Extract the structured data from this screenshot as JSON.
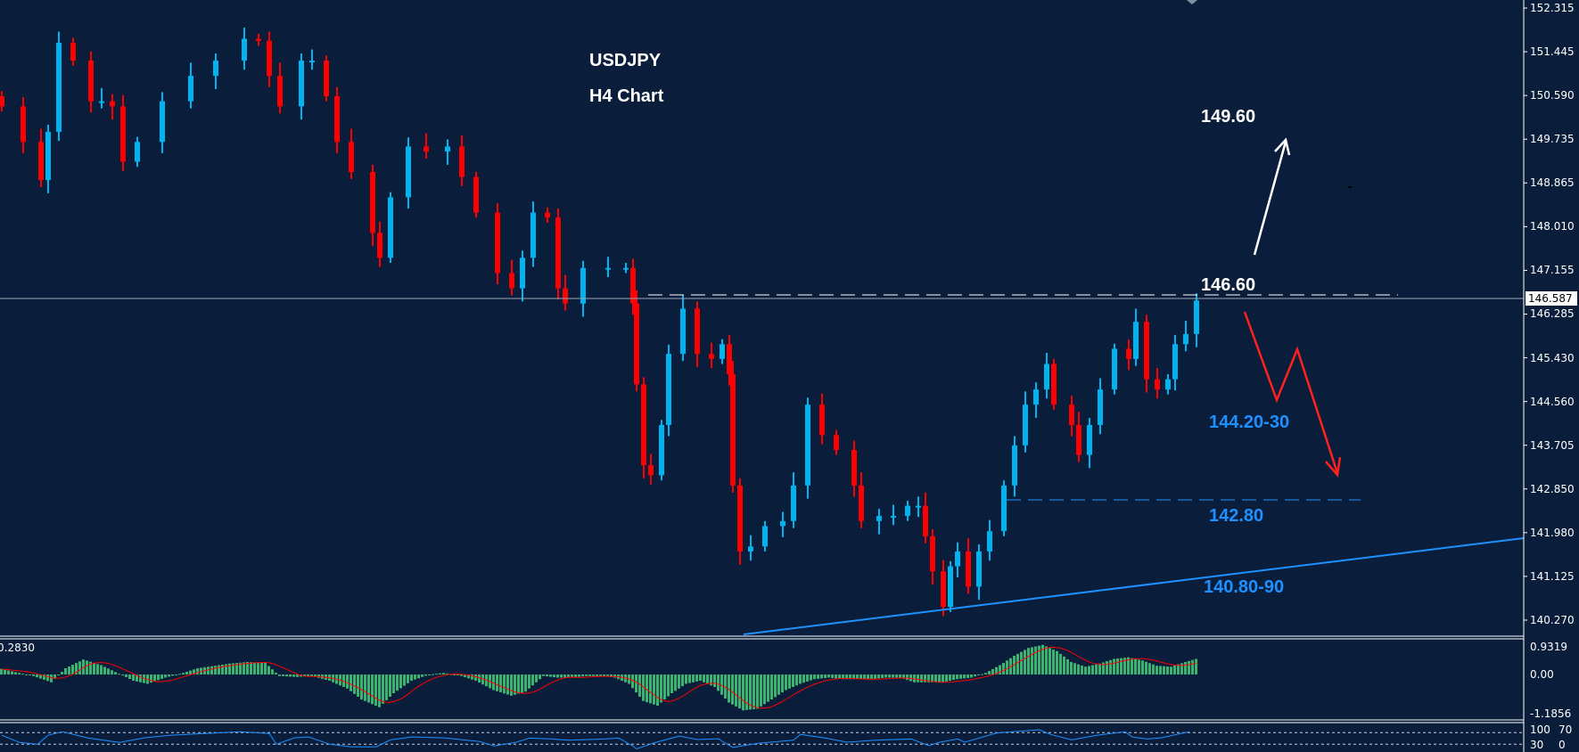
{
  "colors": {
    "background": "#0a1e3b",
    "bull": "#00b4f0",
    "bear": "#ff0000",
    "macd_hist": "#3cb371",
    "macd_signal": "#ff0000",
    "rsi": "#1e90ff",
    "annotation_blue": "#1e90ff",
    "annotation_white": "#ffffff",
    "annotation_red": "#ff2020"
  },
  "header": {
    "symbol": "USDJPY",
    "timeframe": "H4 Chart"
  },
  "current_price": "146.587",
  "annotations": {
    "target_up": "149.60",
    "resistance": "146.60",
    "support_1": "144.20-30",
    "support_2": "142.80",
    "trendline_support": "140.80-90"
  },
  "chart_data": {
    "type": "candlestick",
    "title": "USDJPY",
    "subtitle": "H4 Chart",
    "grid": false,
    "ylim": [
      140.0,
      152.4
    ],
    "y_ticks": [
      "152.315",
      "151.445",
      "150.590",
      "149.735",
      "148.865",
      "148.010",
      "147.155",
      "146.285",
      "145.430",
      "144.560",
      "143.705",
      "142.850",
      "141.980",
      "141.125",
      "140.270"
    ],
    "candles": {
      "bar": [
        0,
        6,
        11,
        13,
        16,
        20,
        25,
        28,
        31,
        34,
        38,
        45,
        53,
        60,
        68,
        72,
        75,
        78,
        84,
        87,
        91,
        94,
        98,
        104,
        106,
        109,
        114,
        119,
        125,
        129,
        133,
        139,
        143,
        146,
        149,
        153,
        156,
        158,
        163,
        170,
        175,
        177,
        178,
        180,
        182,
        185,
        187,
        191,
        195,
        199,
        202,
        204,
        205,
        207,
        210,
        214,
        219,
        222,
        226,
        230,
        234,
        239,
        241,
        246,
        250,
        254,
        257,
        259,
        261,
        264,
        266,
        268,
        271,
        274,
        277,
        281,
        284,
        287,
        290,
        293,
        295,
        300,
        302,
        305,
        308,
        312,
        316,
        318,
        321,
        324,
        327,
        329,
        332,
        335
      ],
      "close": [
        150.38,
        149.68,
        148.93,
        149.88,
        151.63,
        151.28,
        150.48,
        150.48,
        150.38,
        149.29,
        149.68,
        150.48,
        150.98,
        151.28,
        151.71,
        151.67,
        150.98,
        150.38,
        151.28,
        151.28,
        150.58,
        149.68,
        149.09,
        147.89,
        147.4,
        148.59,
        149.59,
        149.49,
        149.59,
        148.99,
        148.29,
        147.1,
        146.8,
        147.4,
        148.29,
        148.19,
        146.8,
        146.5,
        147.2,
        147.2,
        147.2,
        146.5,
        144.91,
        143.32,
        143.12,
        144.11,
        145.51,
        146.4,
        145.51,
        145.41,
        145.7,
        145.11,
        142.92,
        141.62,
        141.72,
        142.12,
        142.22,
        142.92,
        144.51,
        143.91,
        143.62,
        142.92,
        142.22,
        142.32,
        142.32,
        142.52,
        142.52,
        141.92,
        141.23,
        140.53,
        141.33,
        141.62,
        140.93,
        141.62,
        142.02,
        142.92,
        143.71,
        144.51,
        144.81,
        145.31,
        144.51,
        144.11,
        143.52,
        144.11,
        144.81,
        145.61,
        145.41,
        146.14,
        145.01,
        144.81,
        145.01,
        145.7,
        145.9,
        146.56
      ]
    },
    "levels": {
      "resistance": 146.6,
      "support": 142.8,
      "target": 149.6
    },
    "macd": {
      "label": "0.2830",
      "y_ticks": [
        "0.9319",
        "0.00",
        "-1.1856"
      ],
      "ylim": [
        -1.1856,
        0.9319
      ],
      "hist": [
        [
          0,
          0.18
        ],
        [
          5,
          0.05
        ],
        [
          9,
          -0.05
        ],
        [
          14,
          -0.25
        ],
        [
          18,
          0.2
        ],
        [
          23,
          0.48
        ],
        [
          28,
          0.3
        ],
        [
          32,
          0.08
        ],
        [
          37,
          -0.2
        ],
        [
          41,
          -0.3
        ],
        [
          46,
          -0.1
        ],
        [
          51,
          0.05
        ],
        [
          55,
          0.2
        ],
        [
          60,
          0.28
        ],
        [
          64,
          0.35
        ],
        [
          69,
          0.4
        ],
        [
          74,
          0.38
        ],
        [
          78,
          -0.05
        ],
        [
          83,
          -0.08
        ],
        [
          87,
          -0.05
        ],
        [
          92,
          -0.2
        ],
        [
          97,
          -0.45
        ],
        [
          101,
          -0.8
        ],
        [
          106,
          -1.05
        ],
        [
          110,
          -0.6
        ],
        [
          115,
          -0.2
        ],
        [
          120,
          0.0
        ],
        [
          124,
          0.05
        ],
        [
          129,
          -0.05
        ],
        [
          133,
          -0.2
        ],
        [
          138,
          -0.5
        ],
        [
          143,
          -0.68
        ],
        [
          147,
          -0.55
        ],
        [
          152,
          -0.05
        ],
        [
          156,
          -0.1
        ],
        [
          160,
          -0.1
        ],
        [
          164,
          -0.05
        ],
        [
          168,
          -0.05
        ],
        [
          172,
          -0.1
        ],
        [
          176,
          -0.3
        ],
        [
          180,
          -0.85
        ],
        [
          184,
          -1.0
        ],
        [
          188,
          -0.6
        ],
        [
          192,
          -0.3
        ],
        [
          196,
          -0.2
        ],
        [
          200,
          -0.4
        ],
        [
          204,
          -0.9
        ],
        [
          208,
          -1.15
        ],
        [
          212,
          -1.1
        ],
        [
          216,
          -0.8
        ],
        [
          220,
          -0.5
        ],
        [
          224,
          -0.3
        ],
        [
          228,
          -0.15
        ],
        [
          232,
          -0.1
        ],
        [
          236,
          -0.15
        ],
        [
          240,
          -0.15
        ],
        [
          244,
          -0.15
        ],
        [
          248,
          -0.1
        ],
        [
          252,
          -0.1
        ],
        [
          256,
          -0.25
        ],
        [
          260,
          -0.25
        ],
        [
          264,
          -0.25
        ],
        [
          268,
          -0.15
        ],
        [
          272,
          -0.1
        ],
        [
          276,
          0.05
        ],
        [
          280,
          0.3
        ],
        [
          284,
          0.6
        ],
        [
          288,
          0.85
        ],
        [
          292,
          0.95
        ],
        [
          296,
          0.75
        ],
        [
          300,
          0.4
        ],
        [
          304,
          0.25
        ],
        [
          308,
          0.35
        ],
        [
          312,
          0.5
        ],
        [
          316,
          0.55
        ],
        [
          320,
          0.45
        ],
        [
          324,
          0.28
        ],
        [
          328,
          0.25
        ],
        [
          332,
          0.4
        ],
        [
          335,
          0.5
        ]
      ]
    },
    "rsi": {
      "y_ticks": [
        "100",
        "70",
        "30",
        "0"
      ],
      "levels": [
        70,
        30
      ],
      "values": [
        [
          0,
          61
        ],
        [
          5,
          36
        ],
        [
          10,
          30
        ],
        [
          13,
          61
        ],
        [
          17,
          73
        ],
        [
          24,
          52
        ],
        [
          33,
          36
        ],
        [
          40,
          52
        ],
        [
          47,
          61
        ],
        [
          57,
          67
        ],
        [
          67,
          73
        ],
        [
          75,
          67
        ],
        [
          77,
          30
        ],
        [
          82,
          52
        ],
        [
          86,
          55
        ],
        [
          92,
          30
        ],
        [
          98,
          21
        ],
        [
          105,
          21
        ],
        [
          109,
          45
        ],
        [
          115,
          55
        ],
        [
          124,
          52
        ],
        [
          134,
          39
        ],
        [
          138,
          24
        ],
        [
          144,
          36
        ],
        [
          148,
          51
        ],
        [
          154,
          48
        ],
        [
          159,
          44
        ],
        [
          169,
          48
        ],
        [
          173,
          51
        ],
        [
          177,
          23
        ],
        [
          178,
          14
        ],
        [
          183,
          35
        ],
        [
          190,
          58
        ],
        [
          195,
          46
        ],
        [
          201,
          49
        ],
        [
          202,
          40
        ],
        [
          205,
          19
        ],
        [
          212,
          33
        ],
        [
          222,
          44
        ],
        [
          224,
          64
        ],
        [
          231,
          51
        ],
        [
          237,
          37
        ],
        [
          245,
          44
        ],
        [
          255,
          48
        ],
        [
          260,
          25
        ],
        [
          263,
          37
        ],
        [
          268,
          48
        ],
        [
          270,
          37
        ],
        [
          279,
          69
        ],
        [
          291,
          80
        ],
        [
          294,
          64
        ],
        [
          300,
          45
        ],
        [
          307,
          61
        ],
        [
          315,
          73
        ],
        [
          317,
          55
        ],
        [
          321,
          48
        ],
        [
          325,
          52
        ],
        [
          333,
          73
        ]
      ]
    }
  }
}
